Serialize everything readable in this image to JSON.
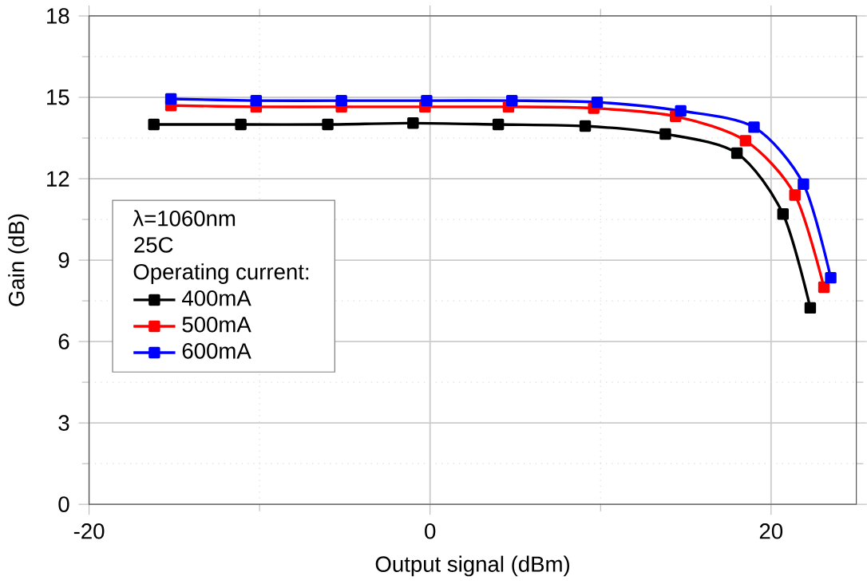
{
  "chart_data": {
    "type": "line",
    "xlabel": "Output signal (dBm)",
    "ylabel": "Gain (dB)",
    "xlim": [
      -20,
      25
    ],
    "xticks": [
      -20,
      0,
      20
    ],
    "ylim": [
      0,
      18
    ],
    "yticks": [
      0,
      3,
      6,
      9,
      12,
      15,
      18
    ],
    "grid": true,
    "legend": "left",
    "marker": "square",
    "line_style": "solid",
    "annotations": [
      "λ=1060nm",
      "25C"
    ],
    "legend_title": "Operating current:",
    "series": [
      {
        "name": "400mA",
        "color": "#000000",
        "x": [
          -16.2,
          -11.1,
          -6.0,
          -1.0,
          4.0,
          9.1,
          13.8,
          18.0,
          20.7,
          22.3
        ],
        "values": [
          14.0,
          14.0,
          14.0,
          14.05,
          14.0,
          13.94,
          13.65,
          12.94,
          10.7,
          7.24
        ]
      },
      {
        "name": "500mA",
        "color": "#ff0000",
        "x": [
          -15.2,
          -10.2,
          -5.2,
          -0.3,
          4.6,
          9.6,
          14.4,
          18.5,
          21.4,
          23.1
        ],
        "values": [
          14.7,
          14.65,
          14.65,
          14.65,
          14.65,
          14.6,
          14.3,
          13.4,
          11.4,
          8.0
        ]
      },
      {
        "name": "600mA",
        "color": "#0000ff",
        "x": [
          -15.2,
          -10.2,
          -5.2,
          -0.2,
          4.8,
          9.8,
          14.7,
          19.0,
          21.9,
          23.5
        ],
        "values": [
          14.94,
          14.88,
          14.88,
          14.88,
          14.88,
          14.82,
          14.5,
          13.9,
          11.8,
          8.35
        ]
      }
    ]
  }
}
